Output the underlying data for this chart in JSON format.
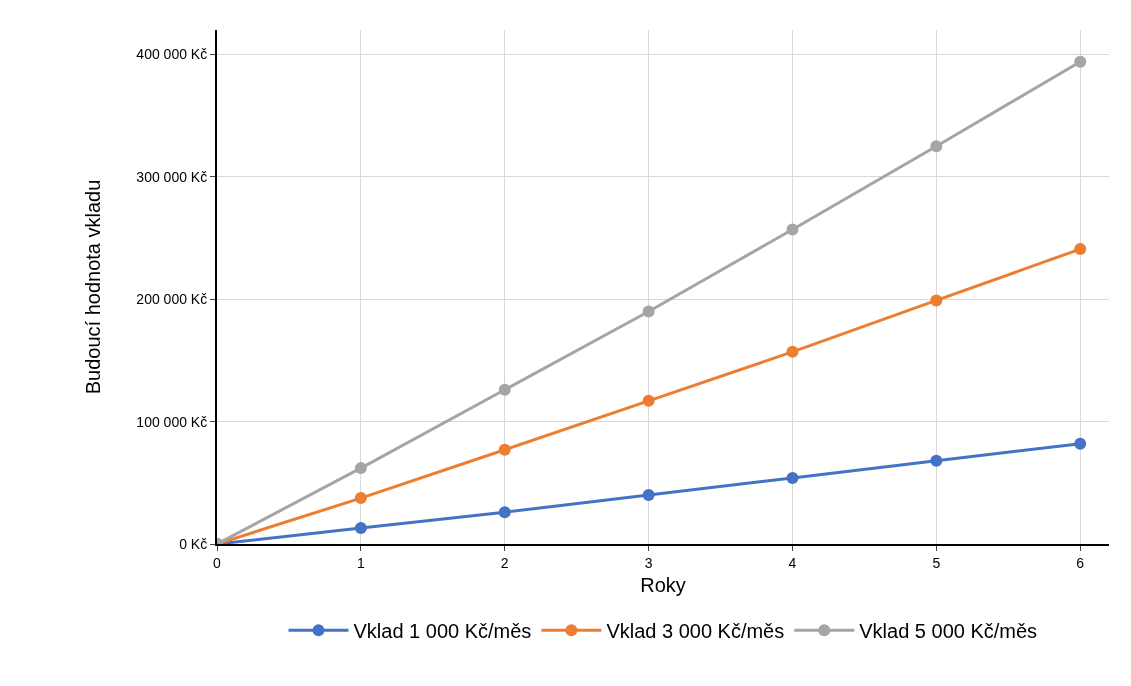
{
  "chart_data": {
    "type": "line",
    "xlabel": "Roky",
    "ylabel": "Budoucí hodnota vkladu",
    "x": [
      0,
      1,
      2,
      3,
      4,
      5,
      6
    ],
    "series": [
      {
        "name": "Vklad 1 000 Kč/měs",
        "color": "#4472c4",
        "values": [
          0,
          13000,
          26000,
          40000,
          54000,
          68000,
          82000
        ]
      },
      {
        "name": "Vklad 3 000 Kč/měs",
        "color": "#ed7d31",
        "values": [
          0,
          37500,
          77000,
          117000,
          157000,
          199000,
          241000
        ]
      },
      {
        "name": "Vklad 5 000 Kč/měs",
        "color": "#a5a5a5",
        "values": [
          0,
          62000,
          126000,
          190000,
          257000,
          325000,
          394000
        ]
      }
    ],
    "xlim": [
      0,
      6.2
    ],
    "xticks": [
      0,
      1,
      2,
      3,
      4,
      5,
      6
    ],
    "ylim": [
      0,
      420000
    ],
    "yticks": [
      {
        "value": 0,
        "label": "0 Kč"
      },
      {
        "value": 100000,
        "label": "100 000 Kč"
      },
      {
        "value": 200000,
        "label": "200 000 Kč"
      },
      {
        "value": 300000,
        "label": "300 000 Kč"
      },
      {
        "value": 400000,
        "label": "400 000 Kč"
      }
    ],
    "grid": true,
    "legend": "bottom",
    "marker": "circle",
    "line_style": "solid"
  }
}
